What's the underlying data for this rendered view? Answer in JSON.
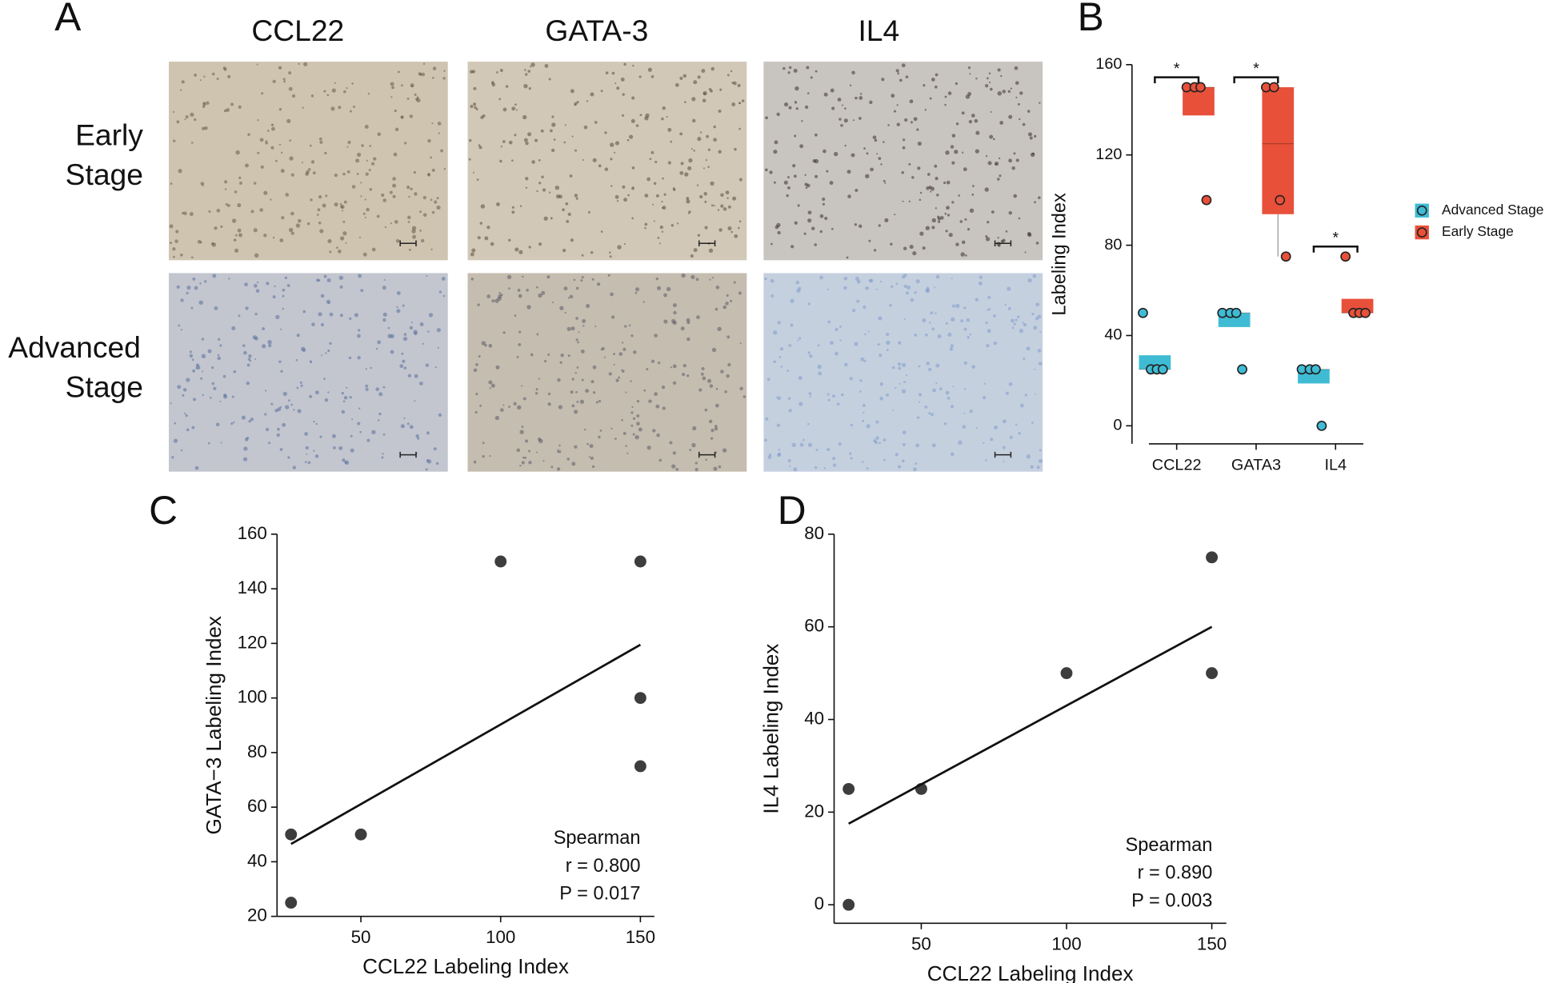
{
  "panel_a": {
    "label": "A",
    "columns": [
      "CCL22",
      "GATA-3",
      "IL4"
    ],
    "rows": [
      [
        "Early",
        "Stage"
      ],
      [
        "Advanced",
        "Stage"
      ]
    ]
  },
  "chart_data": [
    {
      "type": "box",
      "panel": "B",
      "categories": [
        "CCL22",
        "GATA3",
        "IL4"
      ],
      "y_label": "Labeling Index",
      "ylim": [
        -8,
        160
      ],
      "yticks": [
        0,
        40,
        80,
        120,
        160
      ],
      "legend": "right",
      "significance": [
        "*",
        "*",
        "*"
      ],
      "series": [
        {
          "name": "Advanced Stage",
          "color": "#3fbcd4",
          "boxes": [
            {
              "q1": 25,
              "median": 25,
              "q3": 31.25
            },
            {
              "q1": 43.75,
              "median": 50,
              "q3": 50
            },
            {
              "q1": 18.75,
              "median": 25,
              "q3": 25
            }
          ],
          "points": [
            [
              50,
              25,
              25,
              25
            ],
            [
              50,
              50,
              50,
              25
            ],
            [
              25,
              25,
              25,
              0
            ]
          ]
        },
        {
          "name": "Early Stage",
          "color": "#e8503a",
          "boxes": [
            {
              "q1": 137.5,
              "median": 150,
              "q3": 150
            },
            {
              "q1": 93.75,
              "median": 125,
              "q3": 150,
              "lower": 75
            },
            {
              "q1": 50,
              "median": 50,
              "q3": 56.25
            }
          ],
          "points": [
            [
              150,
              150,
              150,
              100
            ],
            [
              150,
              150,
              100,
              75
            ],
            [
              75,
              50,
              50,
              50
            ]
          ]
        }
      ]
    },
    {
      "type": "scatter",
      "panel": "C",
      "x_label": "CCL22 Labeling Index",
      "y_label": "GATA−3 Labeling Index",
      "x": [
        25,
        25,
        50,
        100,
        150,
        150,
        150
      ],
      "y": [
        50,
        25,
        50,
        150,
        150,
        100,
        75
      ],
      "xlim": [
        20,
        155
      ],
      "xticks": [
        50,
        100,
        150
      ],
      "ylim": [
        20,
        160
      ],
      "yticks": [
        20,
        40,
        60,
        80,
        100,
        120,
        140,
        160
      ],
      "fit": {
        "x": [
          25,
          150
        ],
        "y": [
          46.5,
          119.5
        ]
      },
      "annotation": [
        "Spearman",
        "r = 0.800",
        "P = 0.017"
      ]
    },
    {
      "type": "scatter",
      "panel": "D",
      "x_label": "CCL22 Labeling Index",
      "y_label": "IL4 Labeling Index",
      "x": [
        25,
        25,
        50,
        100,
        150,
        150
      ],
      "y": [
        25,
        0,
        25,
        50,
        75,
        50
      ],
      "xlim": [
        20,
        155
      ],
      "xticks": [
        50,
        100,
        150
      ],
      "ylim": [
        -4,
        80
      ],
      "yticks": [
        0,
        20,
        40,
        60,
        80
      ],
      "fit": {
        "x": [
          25,
          150
        ],
        "y": [
          17.5,
          60
        ]
      },
      "annotation": [
        "Spearman",
        "r = 0.890",
        "P = 0.003"
      ]
    }
  ]
}
